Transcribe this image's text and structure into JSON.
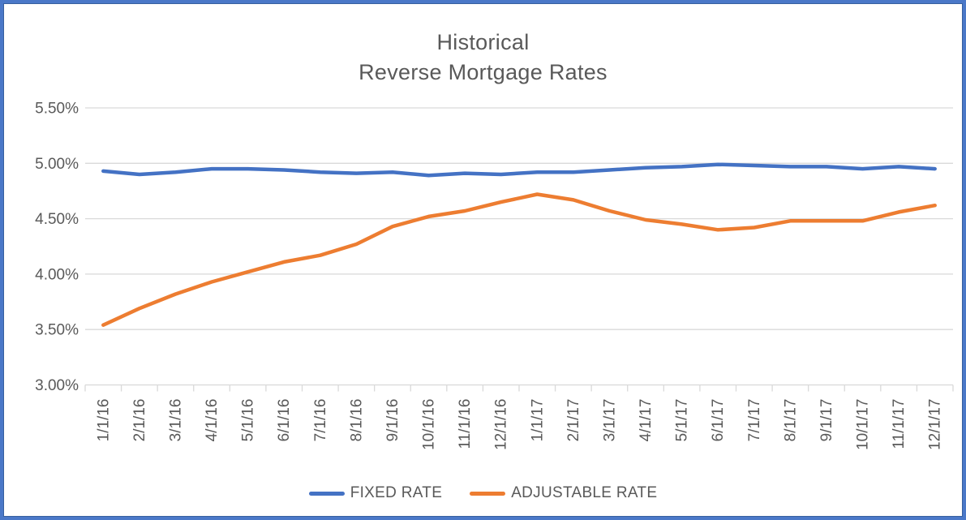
{
  "chart_data": {
    "type": "line",
    "title_line1": "Historical",
    "title_line2": "Reverse Mortgage Rates",
    "categories": [
      "1/1/16",
      "2/1/16",
      "3/1/16",
      "4/1/16",
      "5/1/16",
      "6/1/16",
      "7/1/16",
      "8/1/16",
      "9/1/16",
      "10/1/16",
      "11/1/16",
      "12/1/16",
      "1/1/17",
      "2/1/17",
      "3/1/17",
      "4/1/17",
      "5/1/17",
      "6/1/17",
      "7/1/17",
      "8/1/17",
      "9/1/17",
      "10/1/17",
      "11/1/17",
      "12/1/17"
    ],
    "series": [
      {
        "name": "FIXED RATE",
        "color": "#4472C4",
        "values": [
          4.93,
          4.9,
          4.92,
          4.95,
          4.95,
          4.94,
          4.92,
          4.91,
          4.92,
          4.89,
          4.91,
          4.9,
          4.92,
          4.92,
          4.94,
          4.96,
          4.97,
          4.99,
          4.98,
          4.97,
          4.97,
          4.95,
          4.97,
          4.95
        ]
      },
      {
        "name": "ADJUSTABLE RATE",
        "color": "#ED7D31",
        "values": [
          3.54,
          3.69,
          3.82,
          3.93,
          4.02,
          4.11,
          4.17,
          4.27,
          4.43,
          4.52,
          4.57,
          4.65,
          4.72,
          4.67,
          4.57,
          4.49,
          4.45,
          4.4,
          4.42,
          4.48,
          4.48,
          4.48,
          4.56,
          4.62
        ]
      }
    ],
    "ylim": [
      3.0,
      5.5
    ],
    "ytick_step": 0.5,
    "ytick_labels": [
      "3.00%",
      "3.50%",
      "4.00%",
      "4.50%",
      "5.00%",
      "5.50%"
    ],
    "grid": "horizontal",
    "legend_position": "bottom",
    "colors": {
      "text": "#595959",
      "gridline": "#D9D9D9",
      "frame_border": "#4472C4"
    }
  }
}
